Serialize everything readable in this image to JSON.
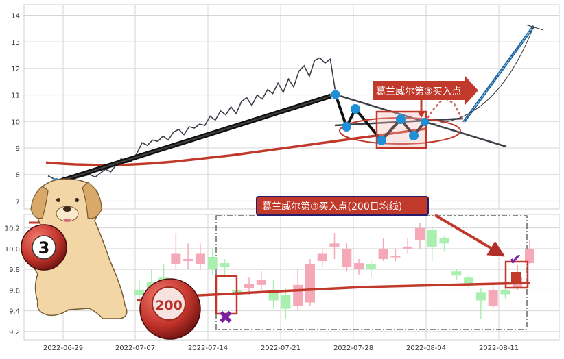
{
  "chart_data": [
    {
      "type": "line",
      "panel": "top",
      "yticks": [
        7,
        8,
        9,
        10,
        11,
        12,
        13,
        14
      ],
      "ylim": [
        6.7,
        14.4
      ],
      "xlim": [
        -4,
        51
      ],
      "grid": true,
      "series": [
        {
          "role": "price",
          "color": "#3a3f48",
          "values": [
            7.95,
            7.85,
            7.75,
            7.9,
            7.8,
            7.85,
            7.9,
            7.95,
            8.0,
            7.9,
            8.05,
            8.2,
            8.1,
            8.35,
            8.6,
            8.45,
            8.5,
            8.8,
            9.2,
            9.1,
            9.3,
            9.25,
            9.45,
            9.3,
            9.6,
            9.7,
            9.5,
            9.8,
            9.75,
            9.9,
            9.85,
            10.2,
            10.05,
            10.4,
            10.25,
            10.55,
            10.3,
            10.75,
            10.9,
            10.6,
            11.0,
            10.85,
            11.2,
            11.05,
            11.45,
            11.1,
            11.6,
            11.3,
            11.9,
            12.1,
            11.7,
            12.3,
            12.4,
            12.2,
            12.35,
            11.1
          ]
        },
        {
          "role": "ma200",
          "color": "#c0392b",
          "values": [
            8.45,
            8.42,
            8.4,
            8.38,
            8.37,
            8.36,
            8.35,
            8.35,
            8.36,
            8.38,
            8.4,
            8.42,
            8.45,
            8.48,
            8.52,
            8.56,
            8.6,
            8.64,
            8.68,
            8.72,
            8.77,
            8.82,
            8.87,
            8.92,
            8.97,
            9.02,
            9.07,
            9.12,
            9.17,
            9.22,
            9.27,
            9.32,
            9.37,
            9.42,
            9.47,
            9.52,
            9.57,
            9.62,
            9.67,
            9.72
          ]
        }
      ],
      "annotation": "葛兰威尔第③买入点",
      "legend_label": "200"
    },
    {
      "type": "candlestick",
      "panel": "bottom",
      "yticks": [
        9.2,
        9.4,
        9.6,
        9.8,
        10.0,
        10.2
      ],
      "ylim": [
        9.12,
        10.33
      ],
      "x_tick_labels": [
        "2022-06-29",
        "2022-07-07",
        "2022-07-14",
        "2022-07-21",
        "2022-07-28",
        "2022-08-04",
        "2022-08-11"
      ],
      "candles": [
        {
          "o": 9.6,
          "c": 9.55,
          "h": 9.7,
          "l": 9.45
        },
        {
          "o": 9.68,
          "c": 9.52,
          "h": 9.8,
          "l": 9.45
        },
        {
          "o": 9.72,
          "c": 9.62,
          "h": 9.85,
          "l": 9.55
        },
        {
          "o": 9.85,
          "c": 9.95,
          "h": 10.15,
          "l": 9.8
        },
        {
          "o": 9.88,
          "c": 9.9,
          "h": 10.05,
          "l": 9.8
        },
        {
          "o": 9.85,
          "c": 9.95,
          "h": 10.05,
          "l": 9.8
        },
        {
          "o": 9.92,
          "c": 9.8,
          "h": 10.0,
          "l": 9.75
        },
        {
          "o": 9.86,
          "c": 9.82,
          "h": 9.9,
          "l": 9.74
        },
        {
          "o": 9.6,
          "c": 9.55,
          "h": 9.7,
          "l": 9.5
        },
        {
          "o": 9.62,
          "c": 9.66,
          "h": 9.72,
          "l": 9.55
        },
        {
          "o": 9.65,
          "c": 9.7,
          "h": 9.78,
          "l": 9.6
        },
        {
          "o": 9.6,
          "c": 9.5,
          "h": 9.7,
          "l": 9.42
        },
        {
          "o": 9.55,
          "c": 9.42,
          "h": 9.62,
          "l": 9.32
        },
        {
          "o": 9.45,
          "c": 9.65,
          "h": 9.8,
          "l": 9.4
        },
        {
          "o": 9.48,
          "c": 9.85,
          "h": 9.9,
          "l": 9.45
        },
        {
          "o": 9.88,
          "c": 9.95,
          "h": 10.0,
          "l": 9.82
        },
        {
          "o": 10.02,
          "c": 10.05,
          "h": 10.15,
          "l": 9.9
        },
        {
          "o": 9.82,
          "c": 10.0,
          "h": 10.05,
          "l": 9.78
        },
        {
          "o": 9.8,
          "c": 9.86,
          "h": 9.9,
          "l": 9.75
        },
        {
          "o": 9.85,
          "c": 9.8,
          "h": 9.88,
          "l": 9.72
        },
        {
          "o": 9.9,
          "c": 10.0,
          "h": 10.1,
          "l": 9.88
        },
        {
          "o": 9.92,
          "c": 9.93,
          "h": 10.0,
          "l": 9.88
        },
        {
          "o": 10.0,
          "c": 10.02,
          "h": 10.1,
          "l": 9.95
        },
        {
          "o": 10.08,
          "c": 10.2,
          "h": 10.25,
          "l": 10.0
        },
        {
          "o": 10.18,
          "c": 10.02,
          "h": 10.22,
          "l": 9.88
        },
        {
          "o": 10.1,
          "c": 10.05,
          "h": 10.12,
          "l": 9.98
        },
        {
          "o": 9.78,
          "c": 9.74,
          "h": 9.8,
          "l": 9.7
        },
        {
          "o": 9.72,
          "c": 9.64,
          "h": 9.75,
          "l": 9.62
        },
        {
          "o": 9.58,
          "c": 9.5,
          "h": 9.62,
          "l": 9.32
        },
        {
          "o": 9.45,
          "c": 9.6,
          "h": 9.65,
          "l": 9.42
        },
        {
          "o": 9.6,
          "c": 9.56,
          "h": 9.68,
          "l": 9.52
        },
        {
          "o": 9.62,
          "c": 9.72,
          "h": 9.84,
          "l": 9.6
        },
        {
          "o": 9.86,
          "c": 10.0,
          "h": 10.08,
          "l": 9.85
        }
      ],
      "ma200": [
        9.5,
        9.52,
        9.54,
        9.55,
        9.56,
        9.57,
        9.58,
        9.59,
        9.6,
        9.61,
        9.62,
        9.63,
        9.635,
        9.64,
        9.645,
        9.65,
        9.655,
        9.66,
        9.665,
        9.67
      ],
      "annotation": "葛兰威尔第③买入点(200日均线)"
    }
  ],
  "badges": {
    "three": "3",
    "two_hundred": "200"
  },
  "colors": {
    "up": "#f4a8b8",
    "down": "#a9efb0",
    "ma": "#c0392b",
    "price": "#3a3f48",
    "accent": "#1f8fd6",
    "panel_grid": "#d6d6d6"
  }
}
